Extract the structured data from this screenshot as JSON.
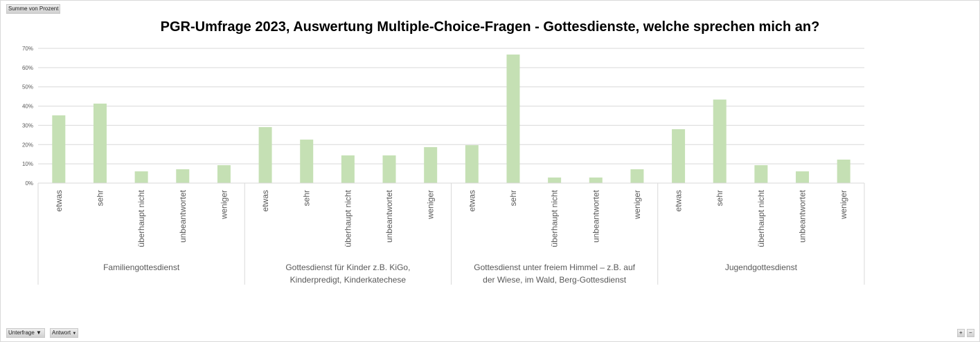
{
  "field_buttons": {
    "value_field": "Summe von Prozent",
    "row_field_1": "Unterfrage",
    "row_field_2": "Antwort"
  },
  "zoom_controls": {
    "plus": "+",
    "minus": "−"
  },
  "chart_data": {
    "type": "bar",
    "title": "PGR-Umfrage 2023, Auswertung Multiple-Choice-Fragen - Gottesdienste, welche sprechen mich an?",
    "ylim": [
      0,
      70
    ],
    "yticks": [
      "0%",
      "10%",
      "20%",
      "30%",
      "40%",
      "50%",
      "60%",
      "70%"
    ],
    "grid": true,
    "bar_color": "#c5e0b4",
    "groups": [
      {
        "label": "Familiengottesdienst",
        "categories": [
          "etwas",
          "sehr",
          "überhaupt nicht",
          "unbeantwortet",
          "weniger"
        ],
        "values": [
          35.2,
          41.3,
          6.1,
          7.2,
          9.3
        ]
      },
      {
        "label": "Gottesdienst für Kinder z.B. KiGo, Kinderpredigt, Kinderkatechese",
        "categories": [
          "etwas",
          "sehr",
          "überhaupt nicht",
          "unbeantwortet",
          "weniger"
        ],
        "values": [
          29.1,
          22.6,
          14.4,
          14.4,
          18.7
        ]
      },
      {
        "label": "Gottesdienst unter freiem Himmel – z.B. auf der Wiese, im Wald, Berg-Gottesdienst",
        "categories": [
          "etwas",
          "sehr",
          "überhaupt nicht",
          "unbeantwortet",
          "weniger"
        ],
        "values": [
          19.7,
          66.8,
          2.9,
          2.9,
          7.2
        ]
      },
      {
        "label": "Jugendgottesdienst",
        "categories": [
          "etwas",
          "sehr",
          "überhaupt nicht",
          "unbeantwortet",
          "weniger"
        ],
        "values": [
          28.0,
          43.4,
          9.3,
          6.1,
          12.2
        ]
      }
    ]
  }
}
